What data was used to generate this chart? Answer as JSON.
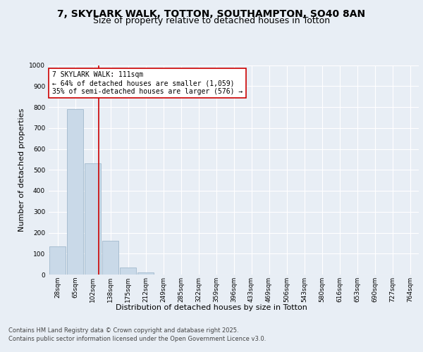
{
  "title_line1": "7, SKYLARK WALK, TOTTON, SOUTHAMPTON, SO40 8AN",
  "title_line2": "Size of property relative to detached houses in Totton",
  "xlabel": "Distribution of detached houses by size in Totton",
  "ylabel": "Number of detached properties",
  "bins": [
    "28sqm",
    "65sqm",
    "102sqm",
    "138sqm",
    "175sqm",
    "212sqm",
    "249sqm",
    "285sqm",
    "322sqm",
    "359sqm",
    "396sqm",
    "433sqm",
    "469sqm",
    "506sqm",
    "543sqm",
    "580sqm",
    "616sqm",
    "653sqm",
    "690sqm",
    "727sqm",
    "764sqm"
  ],
  "values": [
    135,
    790,
    530,
    160,
    35,
    10,
    0,
    0,
    0,
    0,
    0,
    0,
    0,
    0,
    0,
    0,
    0,
    0,
    0,
    0,
    0
  ],
  "bar_color": "#c9d9e8",
  "bar_edge_color": "#a0b8cc",
  "vline_x": 2.35,
  "vline_color": "#cc0000",
  "annotation_text": "7 SKYLARK WALK: 111sqm\n← 64% of detached houses are smaller (1,059)\n35% of semi-detached houses are larger (576) →",
  "annotation_box_color": "white",
  "annotation_box_edge_color": "#cc0000",
  "ylim": [
    0,
    1000
  ],
  "yticks": [
    0,
    100,
    200,
    300,
    400,
    500,
    600,
    700,
    800,
    900,
    1000
  ],
  "background_color": "#e8eef5",
  "plot_background_color": "#e8eef5",
  "footer_line1": "Contains HM Land Registry data © Crown copyright and database right 2025.",
  "footer_line2": "Contains public sector information licensed under the Open Government Licence v3.0.",
  "title_fontsize": 10,
  "subtitle_fontsize": 9,
  "tick_fontsize": 6.5,
  "label_fontsize": 8,
  "annotation_fontsize": 7,
  "footer_fontsize": 6
}
